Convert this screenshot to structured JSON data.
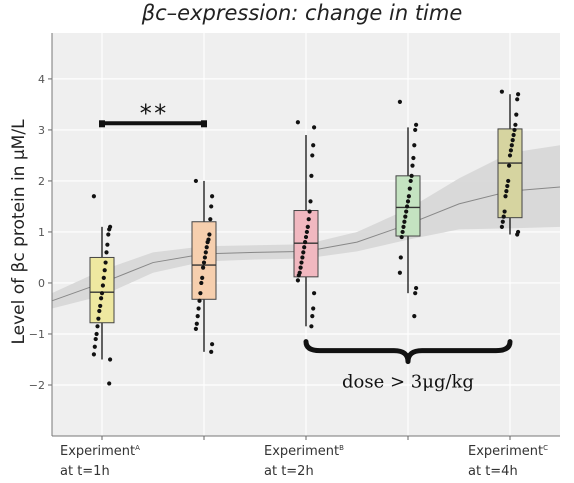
{
  "chart_data": {
    "type": "box",
    "title": "βc–expression: change in time",
    "ylabel": "Level of βc protein in μM/L",
    "ylim": [
      -3.0,
      4.9
    ],
    "yticks": [
      -2,
      -1,
      0,
      1,
      2,
      3,
      4
    ],
    "grid": true,
    "categories": [
      {
        "main": "Experiment",
        "sup": "A",
        "sub": "at t=1h"
      },
      {
        "main": "",
        "sup": "",
        "sub": ""
      },
      {
        "main": "Experiment",
        "sup": "B",
        "sub": "at t=2h"
      },
      {
        "main": "",
        "sup": "",
        "sub": ""
      },
      {
        "main": "Experiment",
        "sup": "C",
        "sub": "at t=4h"
      }
    ],
    "boxes": [
      {
        "q1": -0.78,
        "median": -0.18,
        "q3": 0.5,
        "whisker_low": -1.5,
        "whisker_high": 1.1,
        "color": "#eee8a0",
        "points": [
          1.7,
          1.1,
          1.05,
          0.95,
          0.75,
          0.6,
          0.4,
          0.25,
          0.1,
          -0.05,
          -0.2,
          -0.3,
          -0.45,
          -0.55,
          -0.7,
          -0.85,
          -1.0,
          -1.1,
          -1.25,
          -1.4,
          -1.5,
          -1.97
        ]
      },
      {
        "q1": -0.32,
        "median": 0.35,
        "q3": 1.2,
        "whisker_low": -1.35,
        "whisker_high": 2.0,
        "color": "#f6cfae",
        "points": [
          2.0,
          1.7,
          1.5,
          1.25,
          0.95,
          0.85,
          0.8,
          0.7,
          0.6,
          0.5,
          0.4,
          0.3,
          0.1,
          0.0,
          -0.2,
          -0.35,
          -0.5,
          -0.65,
          -0.8,
          -0.9,
          -1.2,
          -1.35
        ]
      },
      {
        "q1": 0.12,
        "median": 0.78,
        "q3": 1.42,
        "whisker_low": -0.85,
        "whisker_high": 2.9,
        "color": "#f1b8c0",
        "points": [
          3.15,
          3.05,
          2.7,
          2.5,
          2.1,
          1.6,
          1.4,
          1.25,
          1.1,
          1.0,
          0.9,
          0.8,
          0.7,
          0.6,
          0.5,
          0.4,
          0.3,
          0.2,
          0.15,
          0.05,
          -0.2,
          -0.5,
          -0.65,
          -0.85
        ]
      },
      {
        "q1": 0.92,
        "median": 1.48,
        "q3": 2.1,
        "whisker_low": -0.2,
        "whisker_high": 3.05,
        "color": "#c4e3c1",
        "points": [
          3.55,
          3.1,
          3.0,
          2.7,
          2.45,
          2.3,
          2.1,
          2.0,
          1.85,
          1.7,
          1.6,
          1.5,
          1.4,
          1.3,
          1.2,
          1.1,
          1.0,
          0.9,
          0.5,
          0.2,
          -0.1,
          -0.2,
          -0.65
        ]
      },
      {
        "q1": 1.28,
        "median": 2.35,
        "q3": 3.02,
        "whisker_low": 0.95,
        "whisker_high": 3.7,
        "color": "#d6d4a0",
        "points": [
          3.75,
          3.7,
          3.6,
          3.3,
          3.1,
          3.0,
          2.9,
          2.8,
          2.7,
          2.6,
          2.5,
          2.3,
          2.0,
          1.9,
          1.8,
          1.7,
          1.4,
          1.3,
          1.2,
          1.1,
          1.0,
          0.95
        ]
      }
    ],
    "trend": {
      "x": [
        -0.5,
        0.0,
        0.5,
        1.0,
        1.5,
        2.0,
        2.5,
        3.0,
        3.5,
        4.0,
        4.5
      ],
      "mean": [
        -0.35,
        0.0,
        0.4,
        0.57,
        0.6,
        0.62,
        0.8,
        1.15,
        1.55,
        1.8,
        1.88
      ],
      "lower": [
        -0.5,
        -0.25,
        0.2,
        0.42,
        0.46,
        0.48,
        0.62,
        0.85,
        1.05,
        1.07,
        1.1
      ],
      "upper": [
        -0.2,
        0.25,
        0.6,
        0.72,
        0.74,
        0.76,
        1.0,
        1.45,
        2.05,
        2.55,
        2.7
      ]
    },
    "significance": {
      "from": 0,
      "to": 1,
      "y": 3.13,
      "label": "**"
    },
    "brace": {
      "from": 2,
      "to": 4,
      "y": -1.15,
      "label": "dose > 3μg/kg"
    }
  }
}
